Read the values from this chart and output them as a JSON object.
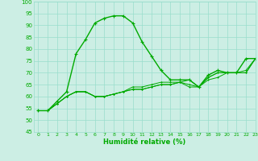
{
  "background_color": "#cceee4",
  "grid_color": "#99ddcc",
  "line_color": "#00aa00",
  "marker_color": "#00aa00",
  "xlabel": "Humidité relative (%)",
  "xlabel_color": "#00aa00",
  "ylim": [
    45,
    100
  ],
  "xlim": [
    -0.5,
    23
  ],
  "yticks": [
    45,
    50,
    55,
    60,
    65,
    70,
    75,
    80,
    85,
    90,
    95,
    100
  ],
  "xticks": [
    0,
    1,
    2,
    3,
    4,
    5,
    6,
    7,
    8,
    9,
    10,
    11,
    12,
    13,
    14,
    15,
    16,
    17,
    18,
    19,
    20,
    21,
    22,
    23
  ],
  "series": [
    [
      54,
      54,
      58,
      62,
      78,
      84,
      91,
      93,
      94,
      94,
      91,
      83,
      77,
      71,
      67,
      67,
      67,
      64,
      69,
      71,
      70,
      70,
      76,
      76
    ],
    [
      54,
      54,
      57,
      60,
      62,
      62,
      60,
      60,
      61,
      62,
      63,
      63,
      64,
      65,
      65,
      66,
      67,
      64,
      67,
      68,
      70,
      70,
      70,
      76
    ],
    [
      54,
      54,
      57,
      60,
      62,
      62,
      60,
      60,
      61,
      62,
      63,
      63,
      64,
      65,
      65,
      66,
      64,
      64,
      68,
      70,
      70,
      70,
      70,
      76
    ],
    [
      54,
      54,
      57,
      60,
      62,
      62,
      60,
      60,
      61,
      62,
      64,
      64,
      65,
      66,
      66,
      66,
      65,
      64,
      68,
      70,
      70,
      70,
      71,
      76
    ]
  ],
  "linewidths": [
    1.0,
    0.7,
    0.7,
    0.7
  ],
  "markersizes": [
    3.0,
    2.0,
    2.0,
    2.0
  ]
}
